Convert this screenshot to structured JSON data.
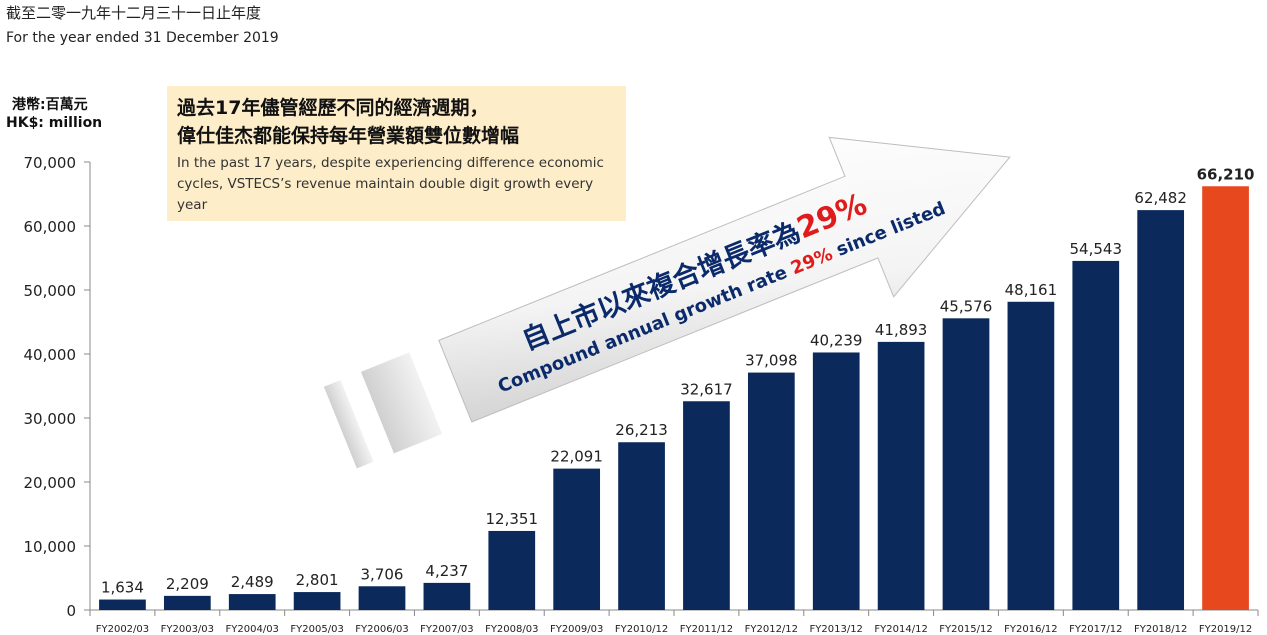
{
  "header": {
    "title_cn": "截至二零一九年十二月三十一日止年度",
    "title_en": "For the year ended 31 December 2019"
  },
  "unit": {
    "cn": "港幣:百萬元",
    "en": "HK$: million"
  },
  "callout": {
    "cn_line1": "過去17年儘管經歷不同的經濟週期，",
    "cn_line2": "偉仕佳杰都能保持每年營業額雙位數增幅",
    "en_text": "In the past 17 years, despite experiencing difference economic cycles, VSTECS’s revenue maintain double digit growth every year"
  },
  "arrow": {
    "cn_prefix": "自上市以來複合增長率為",
    "cn_rate": "29%",
    "en_prefix": "Compound annual growth rate",
    "en_rate": "29%",
    "en_suffix": "since listed"
  },
  "colors": {
    "bar": "#0b2a5b",
    "highlight_bar": "#e8481d",
    "highlight_label": "#e01b1b",
    "rate_red": "#e01b1b",
    "arrow_text_blue": "#0b2a6b",
    "callout_bg": "#fdedc9"
  },
  "chart_data": {
    "type": "bar",
    "categories": [
      "FY2002/03",
      "FY2003/03",
      "FY2004/03",
      "FY2005/03",
      "FY2006/03",
      "FY2007/03",
      "FY2008/03",
      "FY2009/03",
      "FY2010/12",
      "FY2011/12",
      "FY2012/12",
      "FY2013/12",
      "FY2014/12",
      "FY2015/12",
      "FY2016/12",
      "FY2017/12",
      "FY2018/12",
      "FY2019/12"
    ],
    "values": [
      1634,
      2209,
      2489,
      2801,
      3706,
      4237,
      12351,
      22091,
      26213,
      32617,
      37098,
      40239,
      41893,
      45576,
      48161,
      54543,
      62482,
      66210
    ],
    "value_labels": [
      "1,634",
      "2,209",
      "2,489",
      "2,801",
      "3,706",
      "4,237",
      "12,351",
      "22,091",
      "26,213",
      "32,617",
      "37,098",
      "40,239",
      "41,893",
      "45,576",
      "48,161",
      "54,543",
      "62,482",
      "66,210"
    ],
    "highlight_index": 17,
    "ylim": [
      0,
      70000
    ],
    "yticks": [
      0,
      10000,
      20000,
      30000,
      40000,
      50000,
      60000,
      70000
    ],
    "ytick_labels": [
      "0",
      "10,000",
      "20,000",
      "30,000",
      "40,000",
      "50,000",
      "60,000",
      "70,000"
    ],
    "grid": false,
    "title": "",
    "xlabel": "",
    "ylabel": ""
  }
}
